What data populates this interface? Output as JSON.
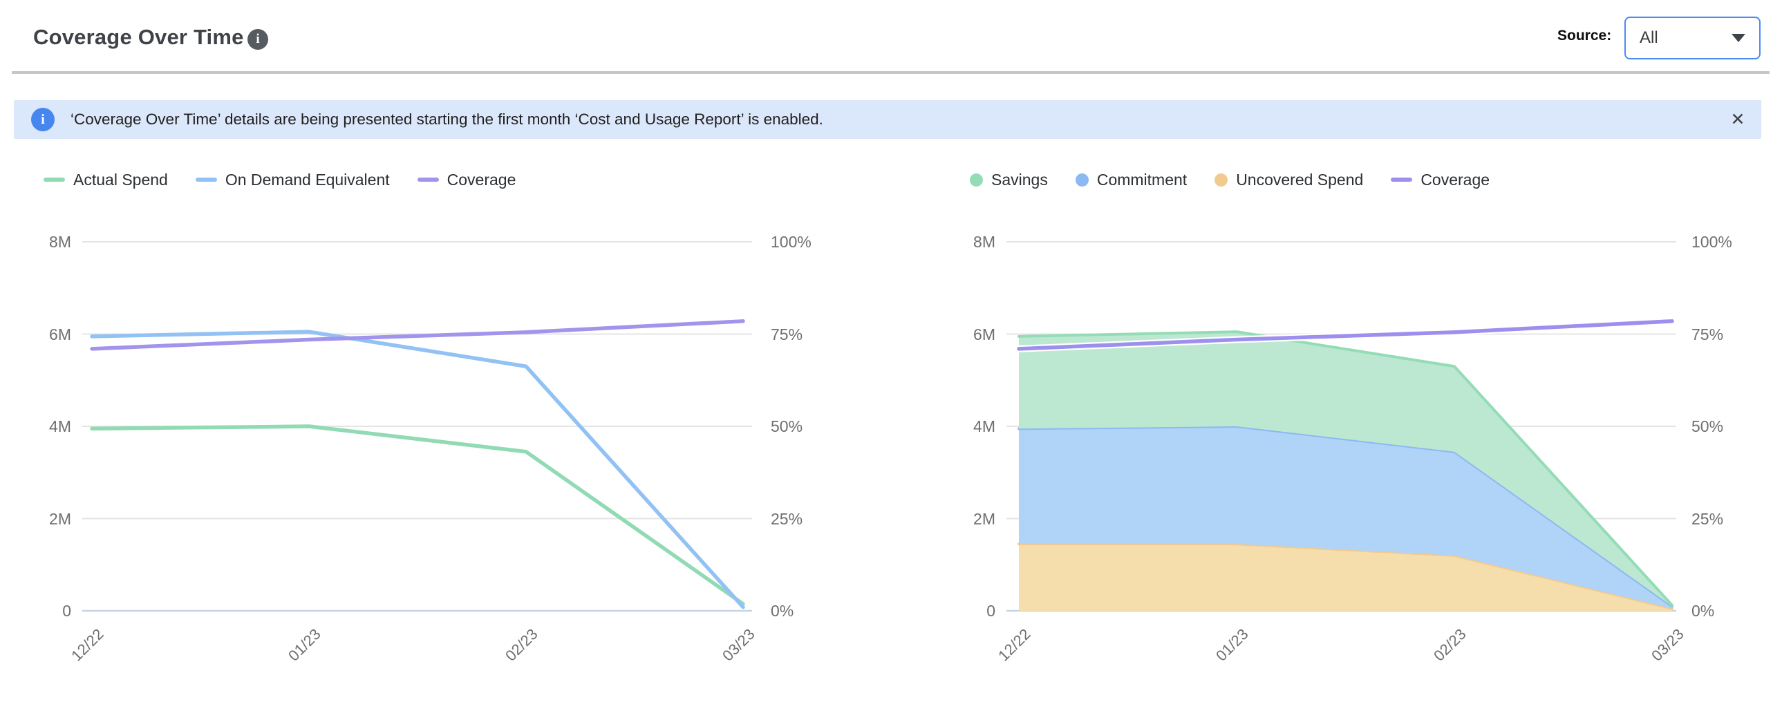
{
  "header": {
    "title": "Coverage Over Time",
    "info_glyph": "i",
    "source_label": "Source:",
    "source_value": "All"
  },
  "banner": {
    "icon_glyph": "i",
    "text": "‘Coverage Over Time’ details are being presented starting the first month ‘Cost and Usage Report’ is enabled.",
    "close_glyph": "✕"
  },
  "chart_data": [
    {
      "type": "line",
      "title": "Spend vs On Demand Equivalent with Coverage",
      "categories": [
        "12/22",
        "01/23",
        "02/23",
        "03/23"
      ],
      "y_left": {
        "ticks": [
          "8M",
          "6M",
          "4M",
          "2M",
          "0"
        ],
        "max": 8,
        "unit": "M"
      },
      "y_right": {
        "ticks": [
          "100%",
          "75%",
          "50%",
          "25%",
          "0%"
        ],
        "max": 100,
        "unit": "%"
      },
      "grid": true,
      "legend_position": "top-left",
      "series": [
        {
          "name": "Actual Spend",
          "kind": "line",
          "axis": "left",
          "unit": "M",
          "color": "#90dab4",
          "values": [
            3.95,
            4.0,
            3.45,
            0.15
          ]
        },
        {
          "name": "On Demand Equivalent",
          "kind": "line",
          "axis": "left",
          "unit": "M",
          "color": "#92c2f4",
          "values": [
            5.95,
            6.05,
            5.3,
            0.08
          ]
        },
        {
          "name": "Coverage",
          "kind": "line",
          "axis": "right",
          "unit": "%",
          "color": "#a294ec",
          "values": [
            71,
            73.5,
            75.5,
            78.5
          ]
        }
      ]
    },
    {
      "type": "area",
      "stacked": true,
      "title": "Savings, Commitment and Uncovered Spend with Coverage",
      "categories": [
        "12/22",
        "01/23",
        "02/23",
        "03/23"
      ],
      "y_left": {
        "ticks": [
          "8M",
          "6M",
          "4M",
          "2M",
          "0"
        ],
        "max": 8,
        "unit": "M"
      },
      "y_right": {
        "ticks": [
          "100%",
          "75%",
          "50%",
          "25%",
          "0%"
        ],
        "max": 100,
        "unit": "%"
      },
      "grid": true,
      "legend_position": "top-left",
      "series": [
        {
          "name": "Savings",
          "kind": "area",
          "axis": "left",
          "unit": "M",
          "color": "#93dcb6",
          "fill": "#bce8d1",
          "values": [
            2.0,
            2.05,
            1.85,
            0.02
          ]
        },
        {
          "name": "Commitment",
          "kind": "area",
          "axis": "left",
          "unit": "M",
          "color": "#8cb9f2",
          "fill": "#b0d3f8",
          "values": [
            2.5,
            2.55,
            2.25,
            0.05
          ]
        },
        {
          "name": "Uncovered Spend",
          "kind": "area",
          "axis": "left",
          "unit": "M",
          "color": "#f3ca8e",
          "fill": "#f5deac",
          "values": [
            1.45,
            1.45,
            1.2,
            0.05
          ]
        },
        {
          "name": "Coverage",
          "kind": "line",
          "axis": "right",
          "unit": "%",
          "color": "#9d8fee",
          "halo": "#ffffff",
          "values": [
            71,
            73.5,
            75.5,
            78.5
          ]
        }
      ]
    }
  ],
  "colors": {
    "accent_blue": "#4b8bf4",
    "banner_bg": "#dbe7fa",
    "banner_icon": "#4586ef",
    "gridline": "#e4e4e4",
    "zero_line": "#c7d2e4",
    "axis_text": "#6e6e6e"
  }
}
